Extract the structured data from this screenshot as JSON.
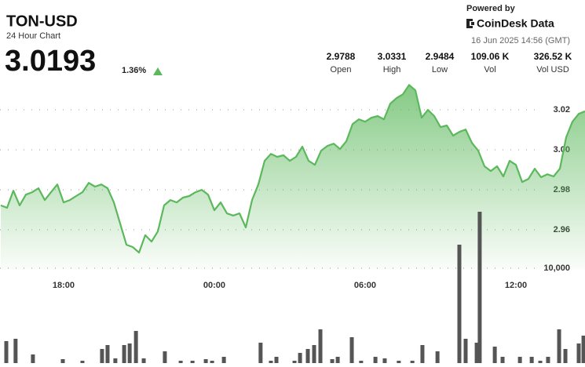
{
  "header": {
    "title": "TON-USD",
    "subtitle": "24 Hour Chart",
    "price": "3.0193",
    "change": "1.36%",
    "powered_by": "Powered by",
    "brand": "CoinDesk Data",
    "timestamp": "16 Jun 2025 14:56 (GMT)",
    "stats": [
      {
        "value": "2.9788",
        "label": "Open"
      },
      {
        "value": "3.0331",
        "label": "High"
      },
      {
        "value": "2.9484",
        "label": "Low"
      },
      {
        "value": "109.06 K",
        "label": "Vol"
      },
      {
        "value": "326.52 K",
        "label": "Vol USD"
      }
    ]
  },
  "chart_data": {
    "type": "area",
    "color": "#5cb85c",
    "x": [
      15.5,
      15.75,
      16,
      16.25,
      16.5,
      16.75,
      17,
      17.25,
      17.5,
      17.75,
      18,
      18.25,
      18.5,
      18.75,
      19,
      19.25,
      19.5,
      19.75,
      20,
      20.25,
      20.5,
      20.75,
      21,
      21.25,
      21.5,
      21.75,
      22,
      22.25,
      22.5,
      22.75,
      23,
      23.25,
      23.5,
      23.75,
      24,
      24.25,
      24.5,
      24.75,
      25,
      25.25,
      25.5,
      25.75,
      26,
      26.25,
      26.5,
      26.75,
      27,
      27.25,
      27.5,
      27.75,
      28,
      28.25,
      28.5,
      28.75,
      29,
      29.25,
      29.5,
      29.75,
      30,
      30.25,
      30.5,
      30.75,
      31,
      31.25,
      31.5,
      31.75,
      32,
      32.25,
      32.5,
      32.75,
      33,
      33.25,
      33.5,
      33.75,
      34,
      34.25,
      34.5,
      34.75,
      35,
      35.25,
      35.5,
      35.75,
      36,
      36.25,
      36.5,
      36.75,
      37,
      37.25,
      37.5,
      37.75,
      38,
      38.25,
      38.5,
      38.75
    ],
    "values": [
      2.9722,
      2.971,
      2.9796,
      2.9722,
      2.9776,
      2.9788,
      2.9808,
      2.9749,
      2.9788,
      2.9827,
      2.9737,
      2.9749,
      2.9769,
      2.9788,
      2.9835,
      2.9816,
      2.9827,
      2.9808,
      2.9737,
      2.9631,
      2.9525,
      2.9514,
      2.9486,
      2.9573,
      2.9541,
      2.9592,
      2.9722,
      2.9749,
      2.9737,
      2.9761,
      2.9769,
      2.9788,
      2.98,
      2.9776,
      2.9698,
      2.9737,
      2.9682,
      2.9671,
      2.9682,
      2.9612,
      2.9749,
      2.9827,
      2.9945,
      2.998,
      2.9965,
      2.9973,
      2.9945,
      2.9965,
      3.0016,
      2.9945,
      2.9925,
      2.9996,
      3.002,
      3.0031,
      3.0004,
      3.0043,
      3.0129,
      3.0153,
      3.0141,
      3.0161,
      3.0169,
      3.0153,
      3.0231,
      3.0259,
      3.0278,
      3.0325,
      3.0298,
      3.0161,
      3.02,
      3.0169,
      3.0114,
      3.0122,
      3.0071,
      3.009,
      3.0102,
      3.0035,
      2.9996,
      2.9918,
      2.9894,
      2.9918,
      2.9867,
      2.9945,
      2.9925,
      2.9839,
      2.9855,
      2.9906,
      2.9863,
      2.9878,
      2.9867,
      2.9906,
      3.0063,
      3.0141,
      3.018,
      3.0193
    ],
    "xlim": [
      15.47,
      38.75
    ],
    "xticks": [
      {
        "value": 18,
        "label": "18:00"
      },
      {
        "value": 24,
        "label": "00:00"
      },
      {
        "value": 30,
        "label": "06:00"
      },
      {
        "value": 36,
        "label": "12:00"
      }
    ],
    "ylim": [
      2.94,
      3.075
    ],
    "yticks": [
      3.02,
      {
        "value": 3,
        "label": "3.00"
      },
      2.98,
      2.96
    ],
    "grid": true,
    "volume": {
      "type": "bar",
      "color": "#555555",
      "x": [
        15.72,
        16.09,
        16.78,
        17.97,
        18.75,
        19.53,
        19.75,
        20.06,
        20.41,
        20.63,
        20.88,
        21.19,
        22.03,
        22.66,
        23.13,
        23.66,
        23.91,
        24.38,
        25.84,
        26.25,
        26.47,
        27.19,
        27.41,
        27.72,
        27.97,
        28.22,
        28.69,
        28.91,
        29.47,
        29.84,
        30.41,
        30.78,
        31.34,
        31.88,
        32.28,
        32.88,
        33.75,
        34,
        34.44,
        34.56,
        35.16,
        35.47,
        36.16,
        36.63,
        36.97,
        37.28,
        37.72,
        37.97,
        38.5,
        38.69
      ],
      "values": [
        2314,
        2562,
        909,
        413,
        248,
        1488,
        1901,
        496,
        1901,
        2066,
        3388,
        496,
        1240,
        248,
        248,
        413,
        248,
        661,
        2149,
        248,
        661,
        248,
        1074,
        1488,
        1901,
        3554,
        413,
        661,
        2727,
        248,
        661,
        496,
        248,
        248,
        1901,
        1240,
        12479,
        2562,
        2149,
        15950,
        1736,
        661,
        661,
        661,
        248,
        661,
        3554,
        1488,
        2066,
        2893
      ],
      "ylim": [
        0,
        20000
      ],
      "yticks": [
        {
          "value": 10000,
          "label": "10,000"
        }
      ]
    }
  }
}
